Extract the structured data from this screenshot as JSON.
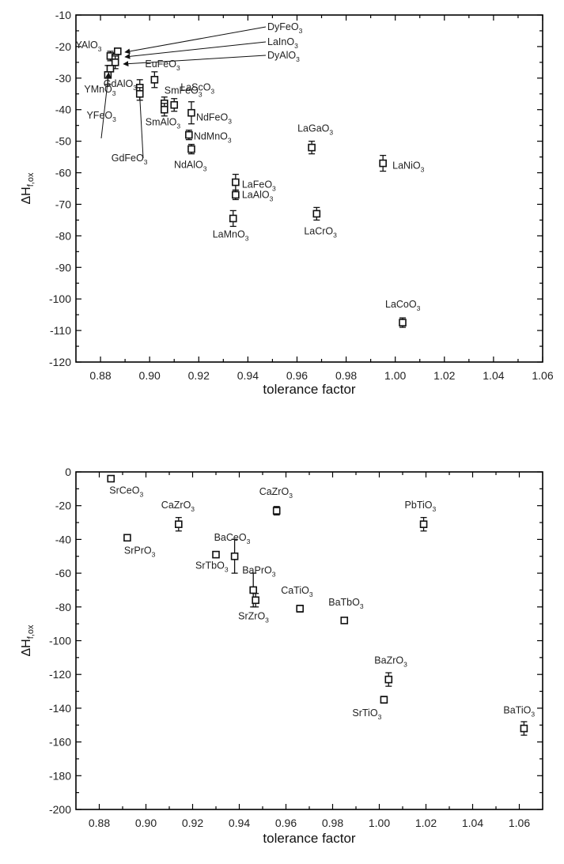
{
  "chart_data": [
    {
      "type": "scatter",
      "title": "",
      "xlabel": "tolerance factor",
      "ylabel": "ΔH",
      "ylabel_sub": "f,ox",
      "xlim": [
        0.87,
        1.06
      ],
      "ylim": [
        -120,
        -10
      ],
      "xticks": [
        "0.88",
        "0.90",
        "0.92",
        "0.94",
        "0.96",
        "0.98",
        "1.00",
        "1.02",
        "1.04",
        "1.06"
      ],
      "yticks": [
        "-10",
        "-20",
        "-30",
        "-40",
        "-50",
        "-60",
        "-70",
        "-80",
        "-90",
        "-100",
        "-110",
        "-120"
      ],
      "grid": false,
      "legend": "none",
      "points": [
        {
          "name": "YAlO",
          "sub": "3",
          "x": 0.884,
          "y": -23,
          "err": 1.5
        },
        {
          "name": "DyFeO",
          "sub": "3",
          "x": 0.887,
          "y": -21.5,
          "err": 1.0
        },
        {
          "name": "LaInO",
          "sub": "3",
          "x": 0.886,
          "y": -23.5,
          "err": 1.0
        },
        {
          "name": "DyAlO",
          "sub": "3",
          "x": 0.886,
          "y": -25,
          "err": 2.0
        },
        {
          "name": "YMnO",
          "sub": "3",
          "x": 0.883,
          "y": -29,
          "err": 3.0
        },
        {
          "name": "YFeO",
          "sub": "3",
          "x": 0.884,
          "y": -27,
          "err": 1.0
        },
        {
          "name": "EuFeO",
          "sub": "3",
          "x": 0.902,
          "y": -30.5,
          "err": 2.5
        },
        {
          "name": "GdAlO",
          "sub": "3",
          "x": 0.896,
          "y": -33,
          "err": 2.5
        },
        {
          "name": "GdFeO",
          "sub": "3",
          "x": 0.896,
          "y": -35,
          "err": 2.0
        },
        {
          "name": "SmFeO",
          "sub": "3",
          "x": 0.906,
          "y": -38,
          "err": 2.0
        },
        {
          "name": "LaScO",
          "sub": "3",
          "x": 0.91,
          "y": -38.5,
          "err": 2.0
        },
        {
          "name": "SmAlO",
          "sub": "3",
          "x": 0.906,
          "y": -40,
          "err": 2.0
        },
        {
          "name": "NdFeO",
          "sub": "3",
          "x": 0.917,
          "y": -41,
          "err": 3.5
        },
        {
          "name": "NdMnO",
          "sub": "3",
          "x": 0.916,
          "y": -48,
          "err": 1.5
        },
        {
          "name": "NdAlO",
          "sub": "3",
          "x": 0.917,
          "y": -52.5,
          "err": 1.5
        },
        {
          "name": "LaGaO",
          "sub": "3",
          "x": 0.966,
          "y": -52,
          "err": 2.0
        },
        {
          "name": "LaNiO",
          "sub": "3",
          "x": 0.995,
          "y": -57,
          "err": 2.5
        },
        {
          "name": "LaFeO",
          "sub": "3",
          "x": 0.935,
          "y": -63,
          "err": 2.5
        },
        {
          "name": "LaAlO",
          "sub": "3",
          "x": 0.935,
          "y": -67,
          "err": 1.5
        },
        {
          "name": "LaMnO",
          "sub": "3",
          "x": 0.934,
          "y": -74.5,
          "err": 2.5
        },
        {
          "name": "LaCrO",
          "sub": "3",
          "x": 0.968,
          "y": -73,
          "err": 2.0
        },
        {
          "name": "LaCoO",
          "sub": "3",
          "x": 1.003,
          "y": -107.5,
          "err": 1.5
        }
      ]
    },
    {
      "type": "scatter",
      "title": "",
      "xlabel": "tolerance factor",
      "ylabel": "ΔH",
      "ylabel_sub": "f,ox",
      "xlim": [
        0.87,
        1.07
      ],
      "ylim": [
        -200,
        0
      ],
      "xticks": [
        "0.88",
        "0.90",
        "0.92",
        "0.94",
        "0.96",
        "0.98",
        "1.00",
        "1.02",
        "1.04",
        "1.06"
      ],
      "yticks": [
        "0",
        "-20",
        "-40",
        "-60",
        "-80",
        "-100",
        "-120",
        "-140",
        "-160",
        "-180",
        "-200"
      ],
      "grid": false,
      "legend": "none",
      "points": [
        {
          "name": "SrCeO",
          "sub": "3",
          "x": 0.885,
          "y": -4,
          "err": 1.0
        },
        {
          "name": "SrPrO",
          "sub": "3",
          "x": 0.892,
          "y": -39,
          "err": 1.0
        },
        {
          "name": "CaZrO",
          "sub": "3",
          "x": 0.914,
          "y": -31,
          "err": 4.0
        },
        {
          "name": "CaZrO",
          "sub": "3",
          "x": 0.956,
          "y": -23,
          "err": 2.5
        },
        {
          "name": "PbTiO",
          "sub": "3",
          "x": 1.019,
          "y": -31,
          "err": 4.0
        },
        {
          "name": "BaCeO",
          "sub": "3",
          "x": 0.938,
          "y": -50,
          "err": 10.0
        },
        {
          "name": "SrTbO",
          "sub": "3",
          "x": 0.93,
          "y": -49,
          "err": 1.0
        },
        {
          "name": "BaPrO",
          "sub": "3",
          "x": 0.946,
          "y": -70,
          "err": 10.0
        },
        {
          "name": "SrZrO",
          "sub": "3",
          "x": 0.947,
          "y": -76,
          "err": 4.0
        },
        {
          "name": "CaTiO",
          "sub": "3",
          "x": 0.966,
          "y": -81,
          "err": 2.0
        },
        {
          "name": "BaTbO",
          "sub": "3",
          "x": 0.985,
          "y": -88,
          "err": 1.0
        },
        {
          "name": "BaZrO",
          "sub": "3",
          "x": 1.004,
          "y": -123,
          "err": 4.0
        },
        {
          "name": "SrTiO",
          "sub": "3",
          "x": 1.002,
          "y": -135,
          "err": 2.0
        },
        {
          "name": "BaTiO",
          "sub": "3",
          "x": 1.062,
          "y": -152,
          "err": 4.0
        }
      ]
    }
  ]
}
